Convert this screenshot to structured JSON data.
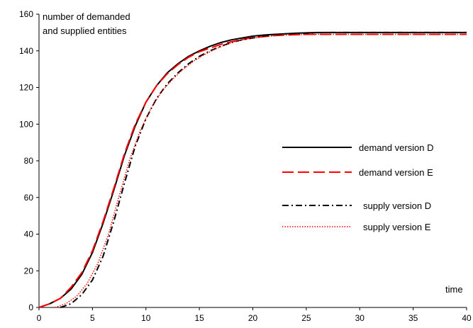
{
  "chart_data": {
    "type": "line",
    "title": "",
    "xlabel": "time",
    "ylabel": "number of demanded and supplied entities",
    "ylabel_lines": [
      "number of demanded",
      "and supplied entities"
    ],
    "xlim": [
      0,
      40
    ],
    "ylim": [
      0,
      160
    ],
    "xticks": [
      0,
      5,
      10,
      15,
      20,
      25,
      30,
      35,
      40
    ],
    "yticks": [
      0,
      20,
      40,
      60,
      80,
      100,
      120,
      140,
      160
    ],
    "grid": false,
    "legend_position": "right",
    "series": [
      {
        "name": "demand version D",
        "color": "#000000",
        "style": "solid",
        "x": [
          0,
          1,
          2,
          3,
          4,
          5,
          6,
          7,
          8,
          9,
          10,
          11,
          12,
          13,
          14,
          15,
          16,
          17,
          18,
          19,
          20,
          21,
          22,
          23,
          24,
          25,
          26,
          27,
          28,
          29,
          30,
          32,
          34,
          36,
          38,
          40
        ],
        "y": [
          0,
          2,
          5,
          10,
          18,
          30,
          46,
          64,
          83,
          99,
          112,
          121,
          128,
          133,
          137,
          140,
          142.5,
          144.5,
          146,
          147,
          148,
          148.6,
          149,
          149.3,
          149.6,
          149.8,
          150,
          150,
          150,
          150,
          150,
          150,
          150,
          150,
          150,
          150
        ]
      },
      {
        "name": "demand version E",
        "color": "#ff0000",
        "style": "dashed",
        "x": [
          0,
          1,
          2,
          3,
          4,
          5,
          6,
          7,
          8,
          9,
          10,
          11,
          12,
          13,
          14,
          15,
          16,
          17,
          18,
          19,
          20,
          21,
          22,
          23,
          24,
          25,
          26,
          27,
          28,
          29,
          30,
          32,
          34,
          36,
          38,
          40
        ],
        "y": [
          0,
          2,
          5,
          11,
          19,
          31,
          47,
          65,
          84,
          100,
          112,
          121,
          127.5,
          132.5,
          136.5,
          139.5,
          141.5,
          143.5,
          145,
          146.2,
          147.2,
          147.8,
          148.3,
          148.6,
          148.8,
          149,
          149,
          149,
          149,
          149,
          149,
          149,
          149,
          149,
          149,
          149
        ]
      },
      {
        "name": "supply version D",
        "color": "#000000",
        "style": "dashdot",
        "x": [
          2,
          3,
          4,
          5,
          6,
          7,
          8,
          9,
          10,
          11,
          12,
          13,
          14,
          15,
          16,
          17,
          18,
          19,
          20,
          21,
          22,
          23,
          24,
          25,
          26,
          27,
          28,
          29,
          30,
          32,
          34,
          36,
          38,
          40
        ],
        "y": [
          0,
          2,
          7,
          15,
          28,
          47,
          68,
          88,
          103,
          114,
          122,
          128,
          133,
          137,
          140,
          142.5,
          144.5,
          146,
          147,
          148,
          148.8,
          149.2,
          149.5,
          149.7,
          149.9,
          150,
          150,
          150,
          150,
          150,
          150,
          150,
          150,
          150
        ]
      },
      {
        "name": "supply version E",
        "color": "#ff0000",
        "style": "dotted",
        "x": [
          1.5,
          2.5,
          3.5,
          4.5,
          5.5,
          6.5,
          7.5,
          8.5,
          9.5,
          10.5,
          11.5,
          12.5,
          13.5,
          14.5,
          15.5,
          16.5,
          17.5,
          18.5,
          19.5,
          20.5,
          22,
          24,
          26,
          28,
          30,
          32,
          34,
          36,
          38,
          40
        ],
        "y": [
          0,
          2,
          6,
          13,
          24,
          40,
          61,
          81,
          97,
          109,
          118,
          124.5,
          130,
          134.5,
          138,
          141,
          143.5,
          145.3,
          146.5,
          147.3,
          148.2,
          148.8,
          149,
          149,
          149,
          149,
          149,
          149,
          149,
          149
        ]
      }
    ]
  }
}
